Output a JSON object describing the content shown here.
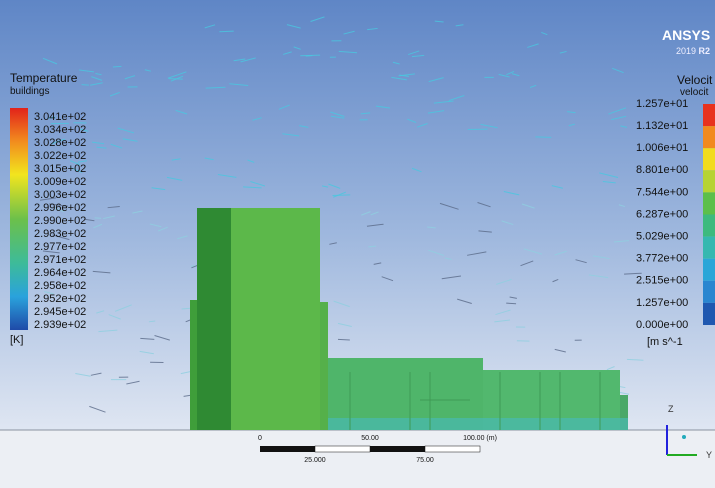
{
  "logo": {
    "brand": "ANSYS",
    "version": "2019",
    "release": "R2"
  },
  "temperature_legend": {
    "title": "Temperature",
    "subtitle": "buildings",
    "labels": [
      "3.041e+02",
      "3.034e+02",
      "3.028e+02",
      "3.022e+02",
      "3.015e+02",
      "3.009e+02",
      "3.003e+02",
      "2.996e+02",
      "2.990e+02",
      "2.983e+02",
      "2.977e+02",
      "2.971e+02",
      "2.964e+02",
      "2.958e+02",
      "2.952e+02",
      "2.945e+02",
      "2.939e+02"
    ],
    "unit": "[K]"
  },
  "velocity_legend": {
    "title": "Velocit",
    "subtitle": "velocit",
    "labels": [
      "1.257e+01",
      "1.132e+01",
      "1.006e+01",
      "8.801e+00",
      "7.544e+00",
      "6.287e+00",
      "5.029e+00",
      "3.772e+00",
      "2.515e+00",
      "1.257e+00",
      "0.000e+00"
    ],
    "unit": "[m s^-1"
  },
  "scale_bar": {
    "top_labels": [
      "0",
      "50.00",
      "100.00 (m)"
    ],
    "bottom_labels": [
      "25.000",
      "75.00"
    ]
  },
  "axes": {
    "z": "Z",
    "y": "Y"
  }
}
